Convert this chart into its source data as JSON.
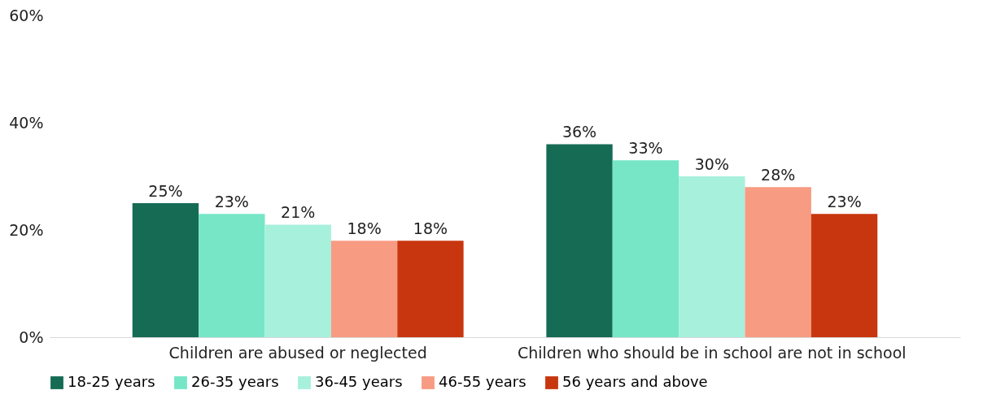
{
  "chart_data": {
    "type": "bar",
    "categories": [
      "Children are abused or neglected",
      "Children who should be in school are not in school"
    ],
    "series": [
      {
        "name": "18-25 years",
        "color": "#166b55",
        "values": [
          25,
          36
        ],
        "value_labels": [
          "25%",
          "36%"
        ]
      },
      {
        "name": "26-35 years",
        "color": "#76e6c7",
        "values": [
          23,
          33
        ],
        "value_labels": [
          "23%",
          "33%"
        ]
      },
      {
        "name": "36-45 years",
        "color": "#a7f0dc",
        "values": [
          21,
          30
        ],
        "value_labels": [
          "21%",
          "30%"
        ]
      },
      {
        "name": "46-55 years",
        "color": "#f79b82",
        "values": [
          18,
          28
        ],
        "value_labels": [
          "18%",
          "28%"
        ]
      },
      {
        "name": "56 years and above",
        "color": "#c8360f",
        "values": [
          18,
          23
        ],
        "value_labels": [
          "18%",
          "23%"
        ]
      }
    ],
    "ylim": [
      0,
      60
    ],
    "yticks": [
      {
        "value": 0,
        "label": "0%"
      },
      {
        "value": 20,
        "label": "20%"
      },
      {
        "value": 40,
        "label": "40%"
      },
      {
        "value": 60,
        "label": "60%"
      }
    ],
    "grid": false,
    "legend": "bottom"
  }
}
